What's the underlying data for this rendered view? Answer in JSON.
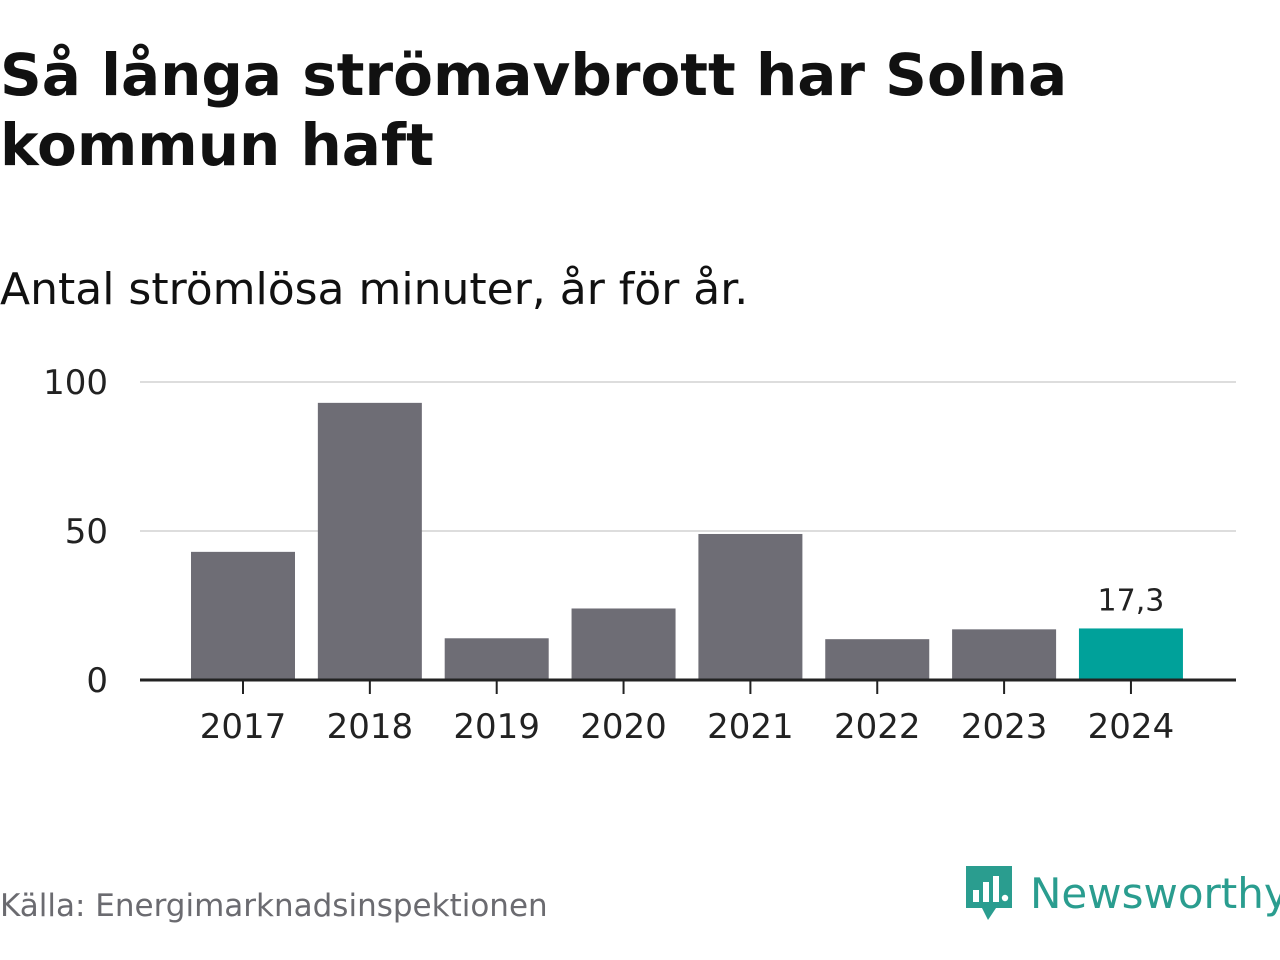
{
  "title": "Så långa strömavbrott har Solna kommun haft",
  "subtitle": "Antal strömlösa minuter, år för år.",
  "source": "Källa: Energimarknadsinspektionen",
  "brand": "Newsworthy",
  "colors": {
    "bar": "#6e6d75",
    "highlight": "#00a19a",
    "grid": "#dddddd",
    "axis": "#222222",
    "text": "#222222",
    "brand": "#2a9d8f"
  },
  "chart_data": {
    "type": "bar",
    "title": "Så långa strömavbrott har Solna kommun haft",
    "subtitle": "Antal strömlösa minuter, år för år.",
    "categories": [
      "2017",
      "2018",
      "2019",
      "2020",
      "2021",
      "2022",
      "2023",
      "2024"
    ],
    "values": [
      43,
      93,
      14,
      24,
      49,
      13.7,
      17,
      17.3
    ],
    "highlight_index": 7,
    "data_labels": [
      {
        "index": 7,
        "label": "17,3"
      }
    ],
    "yticks": [
      0,
      50,
      100
    ],
    "ytick_labels": [
      "0",
      "50",
      "100"
    ],
    "ylim": [
      0,
      100
    ],
    "xlabel": "",
    "ylabel": "",
    "grid": true
  }
}
